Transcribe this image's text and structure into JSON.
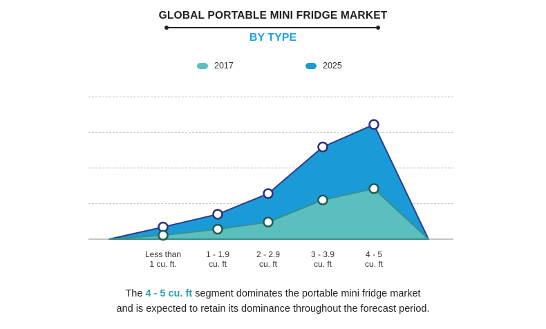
{
  "title": "GLOBAL PORTABLE MINI FRIDGE MARKET",
  "subtitle": "BY TYPE",
  "colors": {
    "s2017_fill": "#5bbfc0",
    "s2017_line": "#3a8f86",
    "s2017_marker": "#1f5c4f",
    "s2025_fill": "#1b9ad8",
    "s2025_line": "#2b3a8c",
    "s2025_marker": "#2e2f7e",
    "subtitle": "#1fa0e0",
    "highlight": "#2b9fb0",
    "grid": "#c8c8c8"
  },
  "chart_data": {
    "type": "area",
    "categories": [
      "Less than 1 cu. ft.",
      "1 - 1.9 cu. ft",
      "2 - 2.9 cu. ft",
      "3 - 3.9 cu. ft",
      "4 - 5 cu. ft"
    ],
    "category_labels": [
      [
        "Less than",
        "1 cu. ft."
      ],
      [
        "1 - 1.9",
        "cu. ft"
      ],
      [
        "2 - 2.9",
        "cu. ft"
      ],
      [
        "3 - 3.9",
        "cu. ft"
      ],
      [
        "4 - 5",
        "cu. ft"
      ]
    ],
    "series": [
      {
        "name": "2017",
        "values": [
          1.1,
          2.8,
          4.8,
          11.0,
          14.2
        ]
      },
      {
        "name": "2025",
        "values": [
          3.4,
          7.0,
          12.8,
          25.9,
          32.2
        ]
      }
    ],
    "ylim": [
      0,
      40
    ],
    "grid": true,
    "y_tick_labels": false,
    "legend_position": "top"
  },
  "footer": {
    "pre": "The ",
    "highlight": "4 - 5 cu. ft",
    "post": " segment dominates the portable mini fridge market",
    "line2": "and is expected to retain its dominance throughout the forecast period."
  }
}
